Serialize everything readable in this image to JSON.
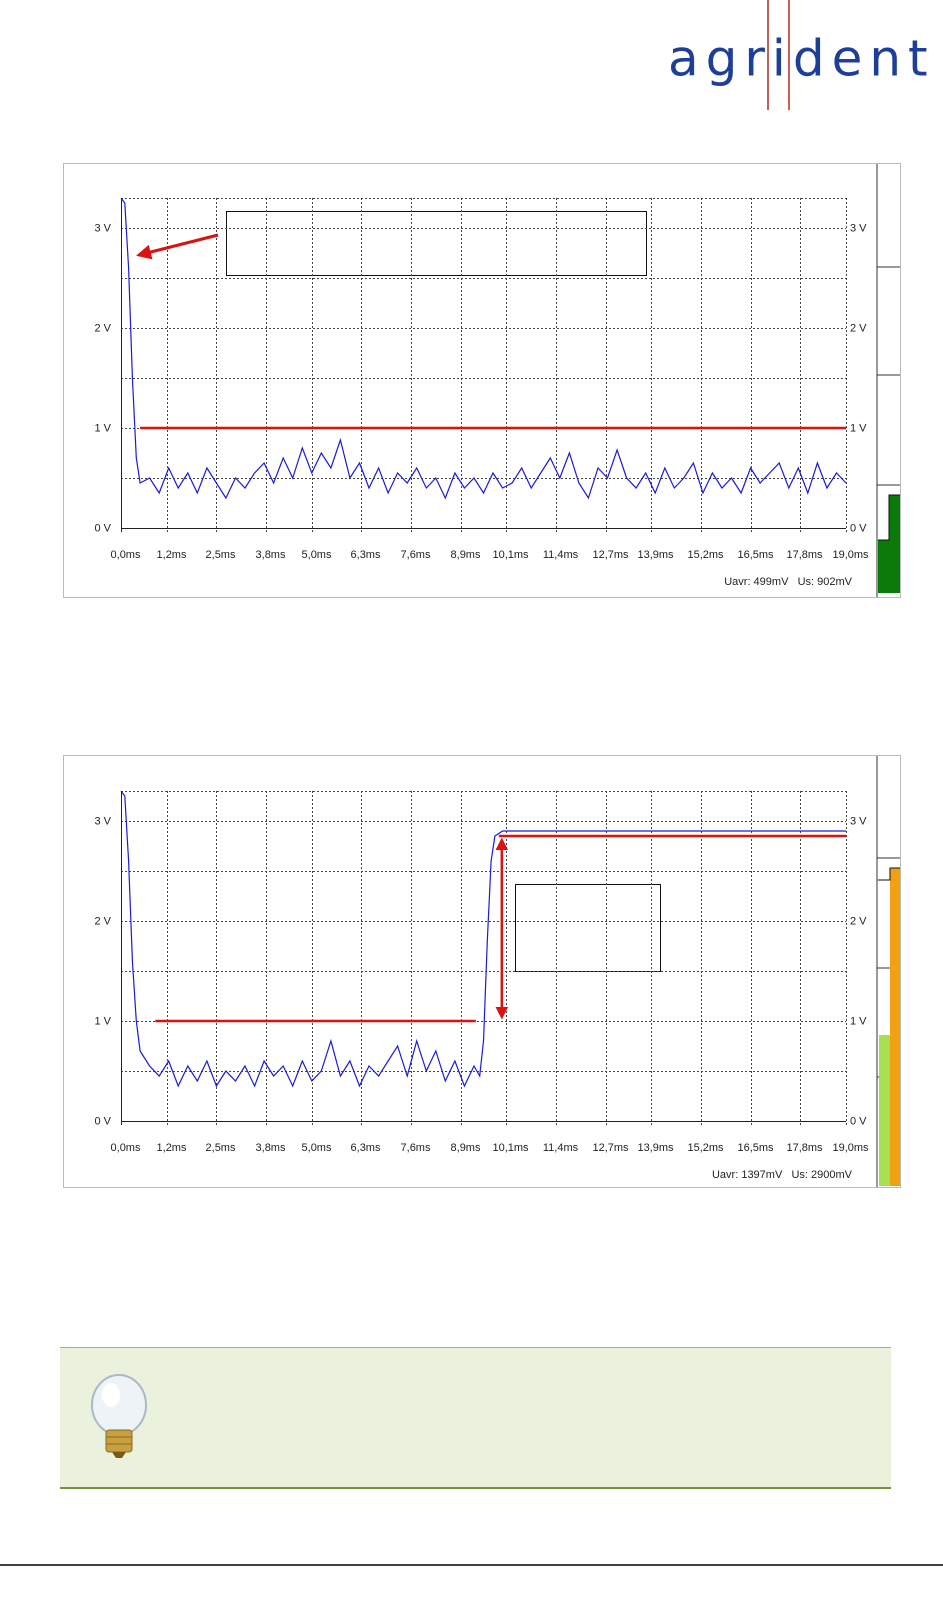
{
  "logo": "agrident",
  "chart_data": [
    {
      "type": "line",
      "x": [
        0,
        0.1,
        0.2,
        0.3,
        0.4,
        0.5,
        0.75,
        1,
        1.25,
        1.5,
        1.75,
        2,
        2.25,
        2.5,
        2.75,
        3,
        3.25,
        3.5,
        3.75,
        4,
        4.25,
        4.5,
        4.75,
        5,
        5.25,
        5.5,
        5.75,
        6,
        6.25,
        6.5,
        6.75,
        7,
        7.25,
        7.5,
        7.75,
        8,
        8.25,
        8.5,
        8.75,
        9,
        9.25,
        9.5,
        9.75,
        10,
        10.25,
        10.5,
        10.75,
        11,
        11.25,
        11.5,
        11.75,
        12,
        12.25,
        12.5,
        12.75,
        13,
        13.25,
        13.5,
        13.75,
        14,
        14.25,
        14.5,
        14.75,
        15,
        15.25,
        15.5,
        15.75,
        16,
        16.25,
        16.5,
        16.75,
        17,
        17.25,
        17.5,
        17.75,
        18,
        18.25,
        18.5,
        18.75,
        19
      ],
      "series": [
        {
          "color": "#1a1adc",
          "values": [
            3.3,
            3.25,
            2.6,
            1.5,
            0.7,
            0.45,
            0.5,
            0.35,
            0.6,
            0.4,
            0.55,
            0.35,
            0.6,
            0.45,
            0.3,
            0.5,
            0.4,
            0.55,
            0.65,
            0.45,
            0.7,
            0.5,
            0.8,
            0.55,
            0.75,
            0.6,
            0.88,
            0.5,
            0.65,
            0.4,
            0.6,
            0.35,
            0.55,
            0.45,
            0.6,
            0.4,
            0.5,
            0.3,
            0.55,
            0.4,
            0.5,
            0.35,
            0.55,
            0.4,
            0.45,
            0.6,
            0.4,
            0.55,
            0.7,
            0.5,
            0.75,
            0.45,
            0.3,
            0.6,
            0.5,
            0.78,
            0.5,
            0.4,
            0.55,
            0.35,
            0.6,
            0.4,
            0.5,
            0.65,
            0.35,
            0.55,
            0.4,
            0.5,
            0.35,
            0.6,
            0.45,
            0.55,
            0.65,
            0.4,
            0.6,
            0.35,
            0.65,
            0.4,
            0.55,
            0.45
          ]
        }
      ],
      "reference_lines": [
        {
          "color": "#e01010",
          "x": [
            0.5,
            19
          ],
          "values": [
            1,
            1
          ]
        }
      ],
      "xlim": [
        0,
        19
      ],
      "ylim": [
        0,
        3.3
      ],
      "xticks": [
        {
          "value": 0,
          "label": "0,0ms"
        },
        {
          "value": 1.2,
          "label": "1,2ms"
        },
        {
          "value": 2.5,
          "label": "2,5ms"
        },
        {
          "value": 3.8,
          "label": "3,8ms"
        },
        {
          "value": 5.0,
          "label": "5,0ms"
        },
        {
          "value": 6.3,
          "label": "6,3ms"
        },
        {
          "value": 7.6,
          "label": "7,6ms"
        },
        {
          "value": 8.9,
          "label": "8,9ms"
        },
        {
          "value": 10.1,
          "label": "10,1ms"
        },
        {
          "value": 11.4,
          "label": "11,4ms"
        },
        {
          "value": 12.7,
          "label": "12,7ms"
        },
        {
          "value": 13.9,
          "label": "13,9ms"
        },
        {
          "value": 15.2,
          "label": "15,2ms"
        },
        {
          "value": 16.5,
          "label": "16,5ms"
        },
        {
          "value": 17.8,
          "label": "17,8ms"
        },
        {
          "value": 19.0,
          "label": "19,0ms"
        }
      ],
      "yticks": [
        {
          "value": 0,
          "label": "0 V"
        },
        {
          "value": 1,
          "label": "1 V"
        },
        {
          "value": 2,
          "label": "2 V"
        },
        {
          "value": 3,
          "label": "3 V"
        }
      ],
      "ygrid": [
        0.5,
        1.5,
        2.5,
        3.3
      ],
      "footer": "Uavr: 499mV   Us: 902mV"
    },
    {
      "type": "line",
      "x": [
        0,
        0.1,
        0.2,
        0.3,
        0.4,
        0.5,
        0.75,
        1,
        1.25,
        1.5,
        1.75,
        2,
        2.25,
        2.5,
        2.75,
        3,
        3.25,
        3.5,
        3.75,
        4,
        4.25,
        4.5,
        4.75,
        5,
        5.25,
        5.5,
        5.75,
        6,
        6.25,
        6.5,
        6.75,
        7,
        7.25,
        7.5,
        7.75,
        8,
        8.25,
        8.5,
        8.75,
        9,
        9.25,
        9.4,
        9.5,
        9.6,
        9.7,
        9.8,
        10,
        19
      ],
      "series": [
        {
          "color": "#1a1adc",
          "values": [
            3.3,
            3.25,
            2.6,
            1.6,
            1.0,
            0.7,
            0.55,
            0.45,
            0.6,
            0.35,
            0.55,
            0.4,
            0.6,
            0.35,
            0.5,
            0.4,
            0.55,
            0.35,
            0.6,
            0.45,
            0.55,
            0.35,
            0.6,
            0.4,
            0.5,
            0.8,
            0.45,
            0.6,
            0.35,
            0.55,
            0.45,
            0.6,
            0.75,
            0.45,
            0.8,
            0.5,
            0.7,
            0.4,
            0.6,
            0.35,
            0.55,
            0.45,
            0.8,
            1.8,
            2.6,
            2.85,
            2.9,
            2.9
          ]
        }
      ],
      "reference_lines": [
        {
          "color": "#e01010",
          "x": [
            0.9,
            9.3
          ],
          "values": [
            1,
            1
          ]
        },
        {
          "color": "#e01010",
          "x": [
            9.9,
            19
          ],
          "values": [
            2.85,
            2.85
          ]
        }
      ],
      "arrows": [
        {
          "color": "#e01010",
          "x": [
            9.98,
            9.98
          ],
          "values": [
            2.85,
            1.0
          ]
        }
      ],
      "xlim": [
        0,
        19
      ],
      "ylim": [
        0,
        3.3
      ],
      "xticks": [
        {
          "value": 0,
          "label": "0,0ms"
        },
        {
          "value": 1.2,
          "label": "1,2ms"
        },
        {
          "value": 2.5,
          "label": "2,5ms"
        },
        {
          "value": 3.8,
          "label": "3,8ms"
        },
        {
          "value": 5.0,
          "label": "5,0ms"
        },
        {
          "value": 6.3,
          "label": "6,3ms"
        },
        {
          "value": 7.6,
          "label": "7,6ms"
        },
        {
          "value": 8.9,
          "label": "8,9ms"
        },
        {
          "value": 10.1,
          "label": "10,1ms"
        },
        {
          "value": 11.4,
          "label": "11,4ms"
        },
        {
          "value": 12.7,
          "label": "12,7ms"
        },
        {
          "value": 13.9,
          "label": "13,9ms"
        },
        {
          "value": 15.2,
          "label": "15,2ms"
        },
        {
          "value": 16.5,
          "label": "16,5ms"
        },
        {
          "value": 17.8,
          "label": "17,8ms"
        },
        {
          "value": 19.0,
          "label": "19,0ms"
        }
      ],
      "yticks": [
        {
          "value": 0,
          "label": "0 V"
        },
        {
          "value": 1,
          "label": "1 V"
        },
        {
          "value": 2,
          "label": "2 V"
        },
        {
          "value": 3,
          "label": "3 V"
        }
      ],
      "ygrid": [
        0.5,
        1.5,
        2.5,
        3.3
      ],
      "footer": "Uavr: 1397mV   Us: 2900mV"
    }
  ]
}
